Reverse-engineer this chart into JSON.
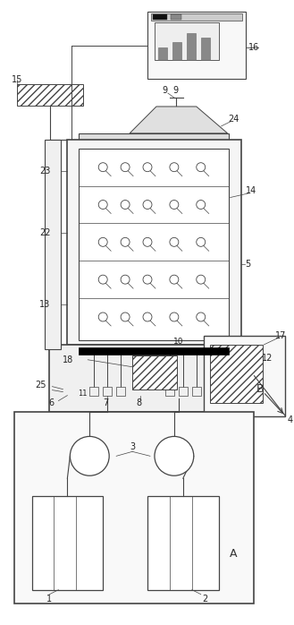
{
  "fig_width": 3.29,
  "fig_height": 6.98,
  "dpi": 100,
  "bg_color": "#ffffff",
  "lc": "#444444",
  "lw": 0.8,
  "tlw": 0.5
}
